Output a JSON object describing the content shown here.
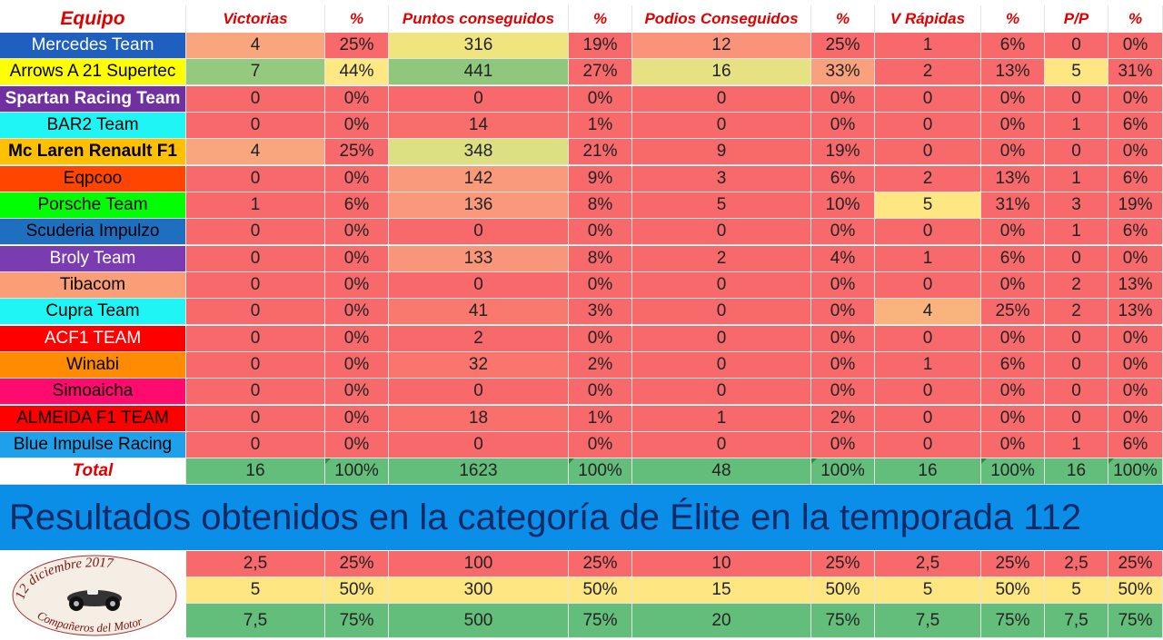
{
  "headers": [
    "Equipo",
    "Victorias",
    "%",
    "Puntos conseguidos",
    "%",
    "Podios Conseguidos",
    "%",
    "V Rápidas",
    "%",
    "P/P",
    "%"
  ],
  "teams": [
    {
      "name": "Mercedes Team",
      "bg": "#1f5fbf",
      "fg": "#ffffff",
      "bold": false,
      "cells": [
        "4",
        "25%",
        "316",
        "19%",
        "12",
        "25%",
        "1",
        "6%",
        "0",
        "0%"
      ],
      "colors": [
        "#f9a57d",
        "#f8696b",
        "#f0e47f",
        "#f8696b",
        "#f9937a",
        "#f8696b",
        "#f8696b",
        "#f8696b",
        "#f8696b",
        "#f8696b"
      ]
    },
    {
      "name": "Arrows A 21 Supertec",
      "bg": "#ffff00",
      "fg": "#000000",
      "bold": false,
      "cells": [
        "7",
        "44%",
        "441",
        "27%",
        "16",
        "33%",
        "2",
        "13%",
        "5",
        "31%"
      ],
      "colors": [
        "#94c97e",
        "#fde883",
        "#8fc87d",
        "#f8696b",
        "#e6e283",
        "#f9a17c",
        "#f8696b",
        "#f8696b",
        "#fee683",
        "#f8696b"
      ]
    },
    {
      "name": "Spartan Racing Team",
      "bg": "#7030a0",
      "fg": "#ffffff",
      "bold": true,
      "cells": [
        "0",
        "0%",
        "0",
        "0%",
        "0",
        "0%",
        "0",
        "0%",
        "0",
        "0%"
      ],
      "colors": [
        "#f8696b",
        "#f8696b",
        "#f8696b",
        "#f8696b",
        "#f8696b",
        "#f8696b",
        "#f8696b",
        "#f8696b",
        "#f8696b",
        "#f8696b"
      ]
    },
    {
      "name": "BAR2 Team",
      "bg": "#1ff5f5",
      "fg": "#000000",
      "bold": false,
      "cells": [
        "0",
        "0%",
        "14",
        "1%",
        "0",
        "0%",
        "0",
        "0%",
        "1",
        "6%"
      ],
      "colors": [
        "#f8696b",
        "#f8696b",
        "#f86e6c",
        "#f8696b",
        "#f8696b",
        "#f8696b",
        "#f8696b",
        "#f8696b",
        "#f8696b",
        "#f8696b"
      ]
    },
    {
      "name": "Mc Laren Renault F1",
      "bg": "#ffc000",
      "fg": "#000000",
      "bold": true,
      "cells": [
        "4",
        "25%",
        "348",
        "21%",
        "9",
        "19%",
        "0",
        "0%",
        "0",
        "0%"
      ],
      "colors": [
        "#f9a57d",
        "#f8696b",
        "#dde082",
        "#f8696b",
        "#f8696b",
        "#f8696b",
        "#f8696b",
        "#f8696b",
        "#f8696b",
        "#f8696b"
      ]
    },
    {
      "name": "Eqpcoo",
      "bg": "#ff4500",
      "fg": "#000000",
      "bold": false,
      "cells": [
        "0",
        "0%",
        "142",
        "9%",
        "3",
        "6%",
        "2",
        "13%",
        "1",
        "6%"
      ],
      "colors": [
        "#f8696b",
        "#f8696b",
        "#f99b7b",
        "#f8696b",
        "#f8696b",
        "#f8696b",
        "#f8696b",
        "#f8696b",
        "#f8696b",
        "#f8696b"
      ]
    },
    {
      "name": "Porsche Team",
      "bg": "#00ff00",
      "fg": "#000000",
      "bold": false,
      "cells": [
        "1",
        "6%",
        "136",
        "8%",
        "5",
        "10%",
        "5",
        "31%",
        "3",
        "19%"
      ],
      "colors": [
        "#f8696b",
        "#f8696b",
        "#f9987a",
        "#f8696b",
        "#f8696b",
        "#f8696b",
        "#fee683",
        "#f8696b",
        "#f8696b",
        "#f8696b"
      ]
    },
    {
      "name": "Scuderia Impulzo",
      "bg": "#1e6fc0",
      "fg": "#000000",
      "bold": false,
      "cells": [
        "0",
        "0%",
        "0",
        "0%",
        "0",
        "0%",
        "0",
        "0%",
        "1",
        "6%"
      ],
      "colors": [
        "#f8696b",
        "#f8696b",
        "#f8696b",
        "#f8696b",
        "#f8696b",
        "#f8696b",
        "#f8696b",
        "#f8696b",
        "#f8696b",
        "#f8696b"
      ]
    },
    {
      "name": "Broly Team",
      "bg": "#7a3cb0",
      "fg": "#ffffff",
      "bold": false,
      "cells": [
        "0",
        "0%",
        "133",
        "8%",
        "2",
        "4%",
        "1",
        "6%",
        "0",
        "0%"
      ],
      "colors": [
        "#f8696b",
        "#f8696b",
        "#f9967a",
        "#f8696b",
        "#f8696b",
        "#f8696b",
        "#f8696b",
        "#f8696b",
        "#f8696b",
        "#f8696b"
      ]
    },
    {
      "name": "Tibacom",
      "bg": "#fa9e77",
      "fg": "#000000",
      "bold": false,
      "cells": [
        "0",
        "0%",
        "0",
        "0%",
        "0",
        "0%",
        "0",
        "0%",
        "2",
        "13%"
      ],
      "colors": [
        "#f8696b",
        "#f8696b",
        "#f8696b",
        "#f8696b",
        "#f8696b",
        "#f8696b",
        "#f8696b",
        "#f8696b",
        "#f8696b",
        "#f8696b"
      ]
    },
    {
      "name": "Cupra Team",
      "bg": "#1ff5f5",
      "fg": "#000000",
      "bold": false,
      "cells": [
        "0",
        "0%",
        "41",
        "3%",
        "0",
        "0%",
        "4",
        "25%",
        "2",
        "13%"
      ],
      "colors": [
        "#f8696b",
        "#f8696b",
        "#f9796f",
        "#f8696b",
        "#f8696b",
        "#f8696b",
        "#fbb37e",
        "#f8696b",
        "#f8696b",
        "#f8696b"
      ]
    },
    {
      "name": "ACF1 TEAM",
      "bg": "#ff0000",
      "fg": "#ffffff",
      "bold": false,
      "cells": [
        "0",
        "0%",
        "2",
        "0%",
        "0",
        "0%",
        "0",
        "0%",
        "0",
        "0%"
      ],
      "colors": [
        "#f8696b",
        "#f8696b",
        "#f8696b",
        "#f8696b",
        "#f8696b",
        "#f8696b",
        "#f8696b",
        "#f8696b",
        "#f8696b",
        "#f8696b"
      ]
    },
    {
      "name": "Winabi",
      "bg": "#ff8c00",
      "fg": "#000000",
      "bold": false,
      "cells": [
        "0",
        "0%",
        "32",
        "2%",
        "0",
        "0%",
        "1",
        "6%",
        "0",
        "0%"
      ],
      "colors": [
        "#f8696b",
        "#f8696b",
        "#f9756e",
        "#f8696b",
        "#f8696b",
        "#f8696b",
        "#f8696b",
        "#f8696b",
        "#f8696b",
        "#f8696b"
      ]
    },
    {
      "name": "Simoaicha",
      "bg": "#ff0a6e",
      "fg": "#000000",
      "bold": false,
      "cells": [
        "0",
        "0%",
        "0",
        "0%",
        "0",
        "0%",
        "0",
        "0%",
        "0",
        "0%"
      ],
      "colors": [
        "#f8696b",
        "#f8696b",
        "#f8696b",
        "#f8696b",
        "#f8696b",
        "#f8696b",
        "#f8696b",
        "#f8696b",
        "#f8696b",
        "#f8696b"
      ]
    },
    {
      "name": "ALMEIDA F1 TEAM",
      "bg": "#ff0000",
      "fg": "#000000",
      "bold": false,
      "cells": [
        "0",
        "0%",
        "18",
        "1%",
        "1",
        "2%",
        "0",
        "0%",
        "0",
        "0%"
      ],
      "colors": [
        "#f8696b",
        "#f8696b",
        "#f86f6c",
        "#f8696b",
        "#f8696b",
        "#f8696b",
        "#f8696b",
        "#f8696b",
        "#f8696b",
        "#f8696b"
      ]
    },
    {
      "name": "Blue Impulse Racing",
      "bg": "#1ea0ea",
      "fg": "#000000",
      "bold": false,
      "cells": [
        "0",
        "0%",
        "0",
        "0%",
        "0",
        "0%",
        "0",
        "0%",
        "1",
        "6%"
      ],
      "colors": [
        "#f8696b",
        "#f8696b",
        "#f8696b",
        "#f8696b",
        "#f8696b",
        "#f8696b",
        "#f8696b",
        "#f8696b",
        "#f8696b",
        "#f8696b"
      ]
    }
  ],
  "total": {
    "label": "Total",
    "cells": [
      "16",
      "100%",
      "1623",
      "100%",
      "48",
      "100%",
      "16",
      "100%",
      "16",
      "100%"
    ]
  },
  "banner": "Resultados obtenidos en la categoría de Élite en la temporada 112",
  "reference_rows": [
    {
      "cells": [
        "2,5",
        "25%",
        "100",
        "25%",
        "10",
        "25%",
        "2,5",
        "25%",
        "2,5",
        "25%"
      ],
      "color": "#f8696b"
    },
    {
      "cells": [
        "5",
        "50%",
        "300",
        "50%",
        "15",
        "50%",
        "5",
        "50%",
        "5",
        "50%"
      ],
      "color": "#fee683"
    },
    {
      "cells": [
        "7,5",
        "75%",
        "500",
        "75%",
        "20",
        "75%",
        "7,5",
        "75%",
        "7,5",
        "75%"
      ],
      "color": "#63be7b"
    }
  ],
  "logo": {
    "text": "12 diciembre 2017 · Compañeros del Motor",
    "icon": "vintage-race-car-icon"
  }
}
